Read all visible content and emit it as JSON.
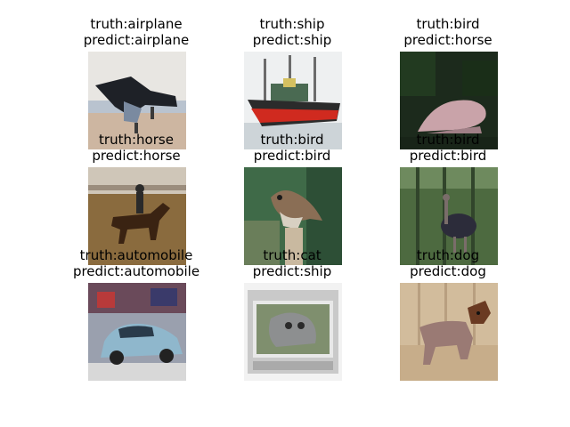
{
  "panels": [
    {
      "truth": "truth:airplane",
      "predict": "predict:airplane",
      "icon": "airplane-image"
    },
    {
      "truth": "truth:ship",
      "predict": "predict:ship",
      "icon": "ship-image"
    },
    {
      "truth": "truth:bird",
      "predict": "predict:horse",
      "icon": "bird-dark-image"
    },
    {
      "truth": "truth:horse",
      "predict": "predict:horse",
      "icon": "horse-rider-image"
    },
    {
      "truth": "truth:bird",
      "predict": "predict:bird",
      "icon": "sparrow-image"
    },
    {
      "truth": "truth:bird",
      "predict": "predict:bird",
      "icon": "ostrich-image"
    },
    {
      "truth": "truth:automobile",
      "predict": "predict:automobile",
      "icon": "car-image"
    },
    {
      "truth": "truth:cat",
      "predict": "predict:ship",
      "icon": "cat-tv-image"
    },
    {
      "truth": "truth:dog",
      "predict": "predict:dog",
      "icon": "dog-image"
    }
  ]
}
